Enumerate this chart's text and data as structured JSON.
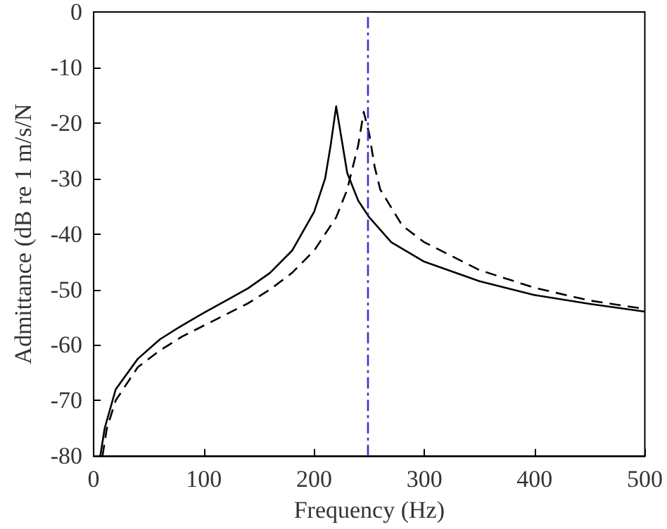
{
  "chart_data": {
    "type": "line",
    "xlabel": "Frequency (Hz)",
    "ylabel": "Admittance (dB re 1 m/s/N",
    "xlim": [
      0,
      500
    ],
    "ylim": [
      -80,
      0
    ],
    "xticks": [
      0,
      100,
      200,
      300,
      400,
      500
    ],
    "yticks": [
      -80,
      -70,
      -60,
      -50,
      -40,
      -30,
      -20,
      -10,
      0
    ],
    "grid": false,
    "marker": "none",
    "series": [
      {
        "color": "#000000",
        "line_style": "solid",
        "x": [
          6,
          10,
          20,
          40,
          60,
          80,
          100,
          120,
          140,
          160,
          180,
          200,
          210,
          215,
          220,
          225,
          230,
          240,
          250,
          270,
          300,
          350,
          400,
          450,
          500
        ],
        "values": [
          -80,
          -75,
          -68,
          -62.5,
          -59,
          -56.5,
          -54.2,
          -52,
          -49.8,
          -47,
          -43,
          -36,
          -30,
          -24,
          -17,
          -23,
          -29,
          -34,
          -37,
          -41.5,
          -45,
          -48.5,
          -51,
          -52.6,
          -54
        ]
      },
      {
        "color": "#000000",
        "line_style": "dashed",
        "x": [
          8,
          12,
          20,
          40,
          60,
          80,
          100,
          120,
          140,
          160,
          180,
          200,
          220,
          230,
          240,
          245,
          250,
          255,
          260,
          280,
          300,
          350,
          400,
          450,
          500
        ],
        "values": [
          -80,
          -75,
          -70,
          -64,
          -61,
          -58.5,
          -56.5,
          -54.5,
          -52.5,
          -50,
          -47,
          -43,
          -37,
          -32,
          -24,
          -18,
          -22,
          -28,
          -32,
          -38.5,
          -41.5,
          -46.5,
          -49.7,
          -52,
          -53.5
        ]
      }
    ],
    "ref_lines": [
      {
        "axis": "x",
        "value": 249,
        "color": "#3333cc",
        "line_style": "dashdot"
      }
    ]
  }
}
